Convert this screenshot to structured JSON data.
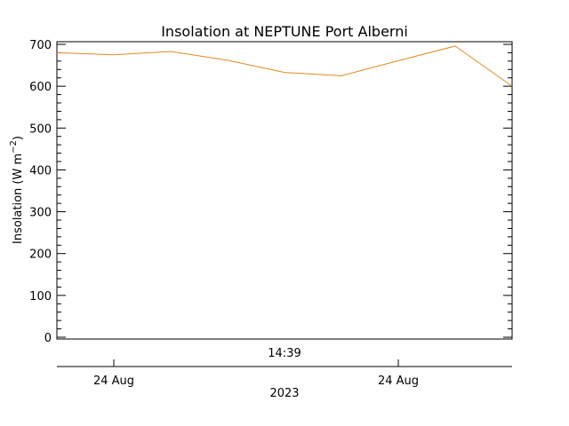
{
  "chart_data": {
    "type": "line",
    "title": "Insolation at NEPTUNE Port Alberni",
    "ylabel_main": "Insolation (W m",
    "ylabel_sup": "−2",
    "ylabel_close": ")",
    "ylim": [
      0,
      700
    ],
    "yticks": [
      0,
      100,
      200,
      300,
      400,
      500,
      600,
      700
    ],
    "y_minor_step": 20,
    "x_center_label": "14:39",
    "x_date_labels": [
      "24 Aug",
      "24 Aug"
    ],
    "x_year_label": "2023",
    "series": [
      {
        "color": "#e08a1e",
        "x": [
          0,
          1,
          2,
          3,
          4,
          5,
          6,
          7,
          8
        ],
        "values": [
          680,
          675,
          683,
          662,
          633,
          625,
          661,
          696,
          600
        ]
      }
    ],
    "x_range": [
      0,
      8
    ],
    "grid": false
  }
}
